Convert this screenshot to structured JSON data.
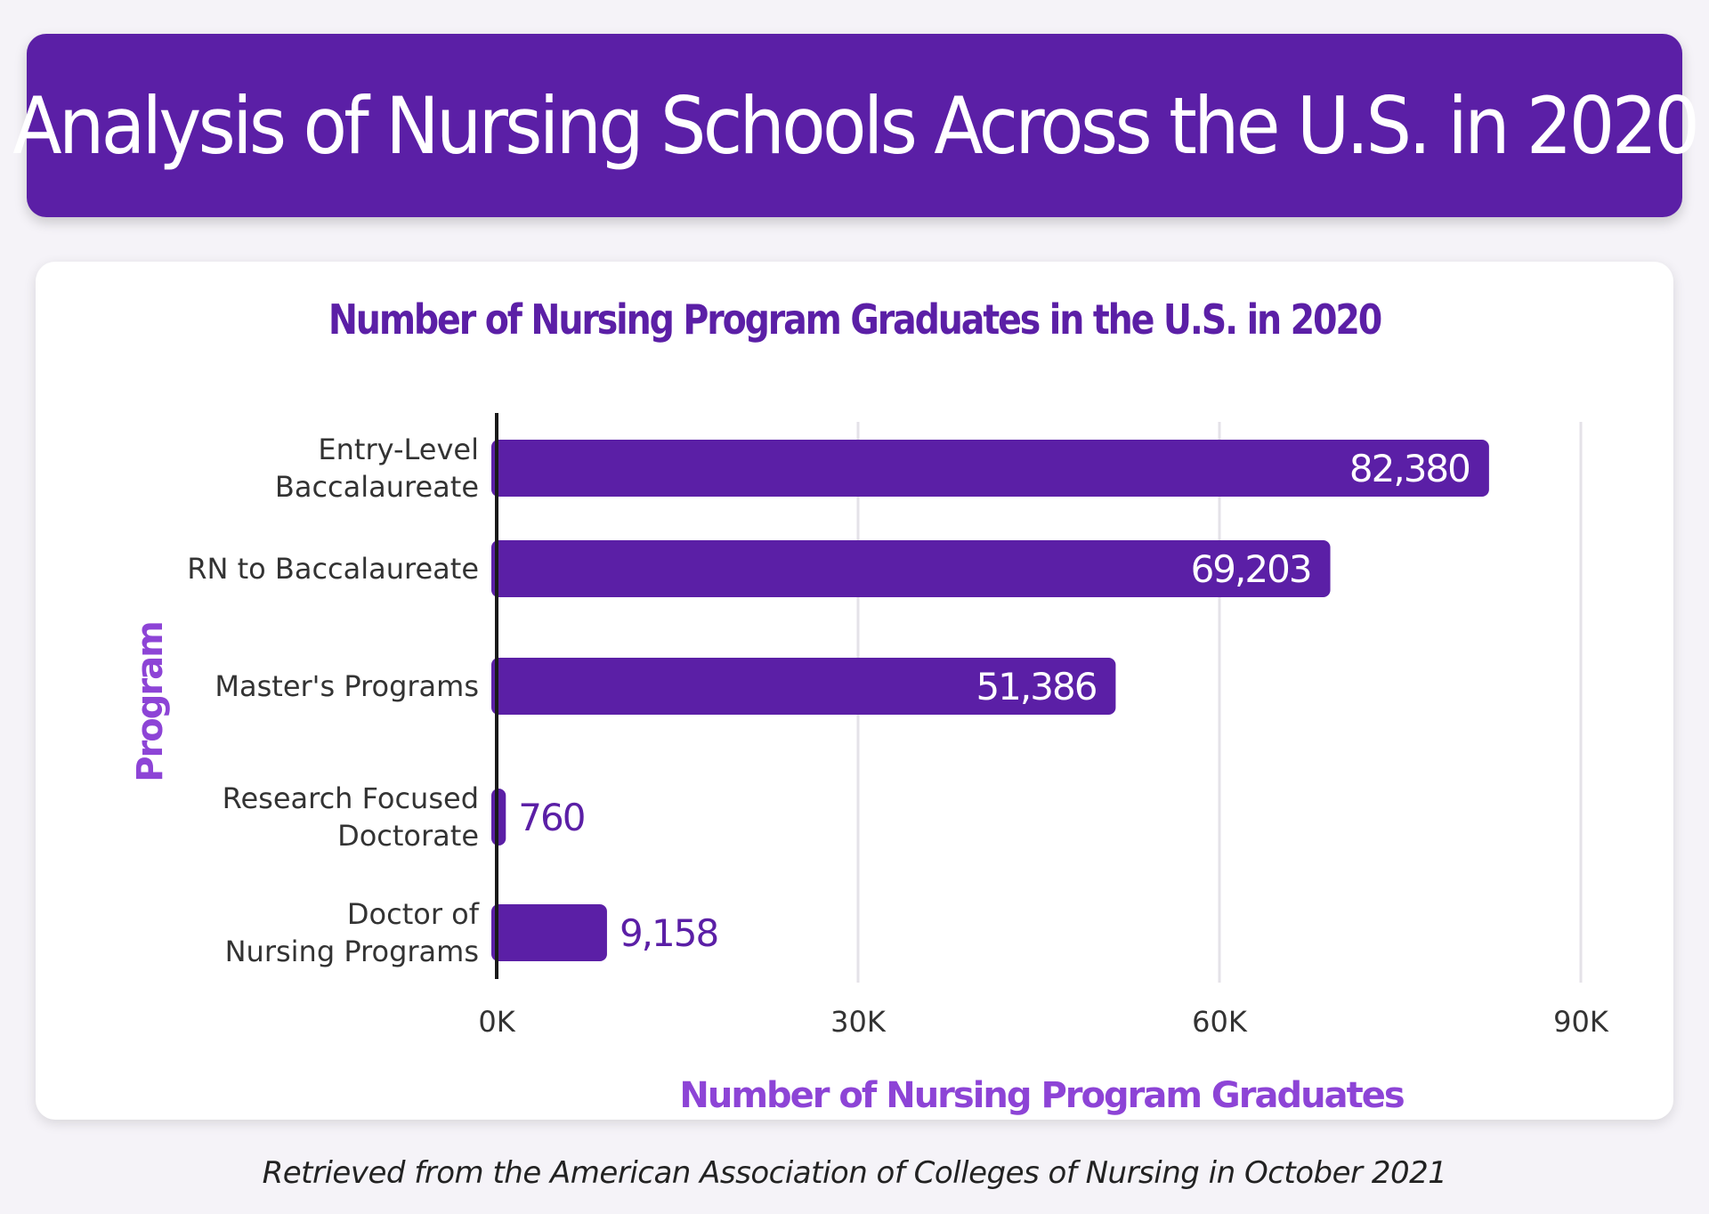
{
  "header": {
    "title": "Analysis of Nursing Schools Across the U.S. in 2020"
  },
  "footer": {
    "source": "Retrieved from the American Association of Colleges of Nursing in October 2021"
  },
  "colors": {
    "accent": "#5b1fa6",
    "axis_label": "#8d44d6",
    "bar": "#5b1fa6",
    "grid": "#e4e2e8",
    "text": "#333333"
  },
  "chart_data": {
    "type": "bar",
    "orientation": "horizontal",
    "title": "Number of Nursing Program Graduates in the U.S. in 2020",
    "xlabel": "Number of Nursing Program Graduates",
    "ylabel": "Program",
    "categories": [
      [
        "Entry-Level",
        "Baccalaureate"
      ],
      [
        "RN to Baccalaureate"
      ],
      [
        "Master's Programs"
      ],
      [
        "Research Focused",
        "Doctorate"
      ],
      [
        "Doctor of",
        "Nursing Programs"
      ]
    ],
    "values": [
      82380,
      69203,
      51386,
      760,
      9158
    ],
    "value_labels": [
      "82,380",
      "69,203",
      "51,386",
      "760",
      "9,158"
    ],
    "xlim": [
      0,
      90000
    ],
    "xticks": [
      0,
      30000,
      60000,
      90000
    ],
    "xtick_labels": [
      "0K",
      "30K",
      "60K",
      "90K"
    ],
    "grid": true,
    "legend": "none"
  }
}
